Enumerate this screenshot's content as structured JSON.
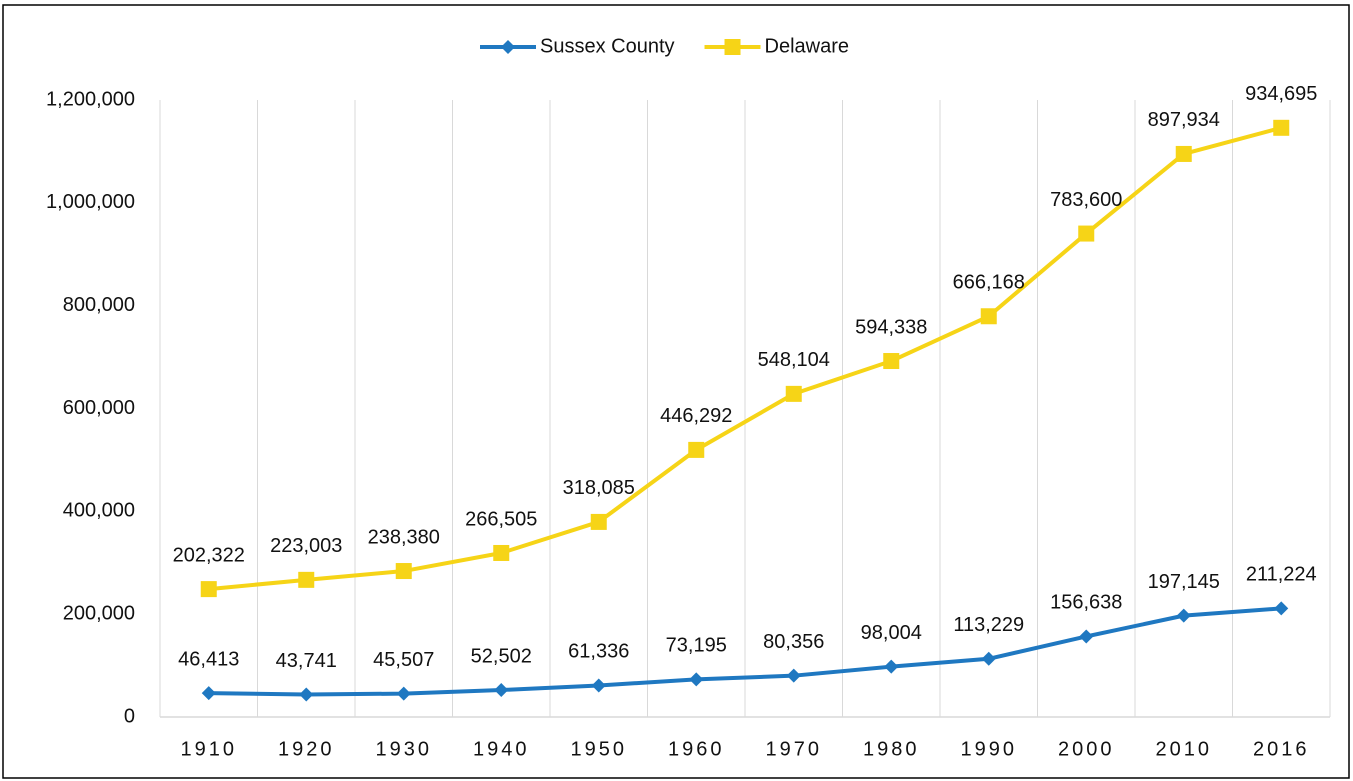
{
  "chart_data": {
    "type": "line",
    "stacked": true,
    "categories": [
      "1910",
      "1920",
      "1930",
      "1940",
      "1950",
      "1960",
      "1970",
      "1980",
      "1990",
      "2000",
      "2010",
      "2016"
    ],
    "series": [
      {
        "name": "Sussex County",
        "color": "#1f78c1",
        "marker": "diamond",
        "values": [
          46413,
          43741,
          45507,
          52502,
          61336,
          73195,
          80356,
          98004,
          113229,
          156638,
          197145,
          211224
        ],
        "value_labels": [
          "46,413",
          "43,741",
          "45,507",
          "52,502",
          "61,336",
          "73,195",
          "80,356",
          "98,004",
          "113,229",
          "156,638",
          "197,145",
          "211,224"
        ]
      },
      {
        "name": "Delaware",
        "color": "#f6d417",
        "marker": "square",
        "values": [
          202322,
          223003,
          238380,
          266505,
          318085,
          446292,
          548104,
          594338,
          666168,
          783600,
          897934,
          934695
        ],
        "value_labels": [
          "202,322",
          "223,003",
          "238,380",
          "266,505",
          "318,085",
          "446,292",
          "548,104",
          "594,338",
          "666,168",
          "783,600",
          "897,934",
          "934,695"
        ]
      }
    ],
    "ylim": [
      0,
      1200000
    ],
    "yticks": [
      {
        "value": 0,
        "label": "0"
      },
      {
        "value": 200000,
        "label": "200,000"
      },
      {
        "value": 400000,
        "label": "400,000"
      },
      {
        "value": 600000,
        "label": "600,000"
      },
      {
        "value": 800000,
        "label": "800,000"
      },
      {
        "value": 1000000,
        "label": "1,000,000"
      },
      {
        "value": 1200000,
        "label": "1,200,000"
      }
    ],
    "grid": "vertical",
    "legend": "top"
  }
}
